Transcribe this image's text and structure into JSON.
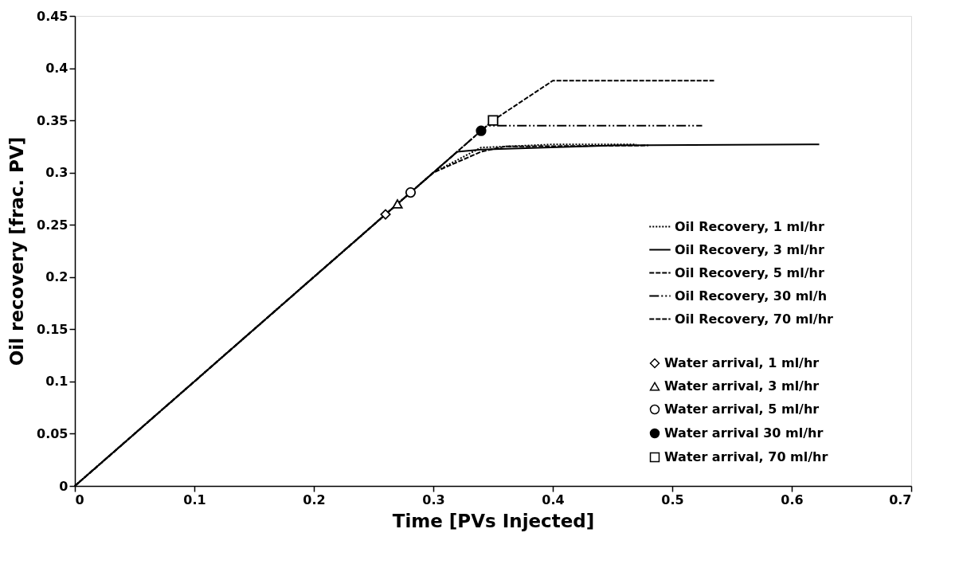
{
  "chart_data": {
    "type": "line",
    "xlabel": "Time [PVs Injected]",
    "ylabel": "Oil recovery [frac. PV]",
    "xlim": [
      0,
      0.7
    ],
    "xticks": [
      0,
      0.1,
      0.2,
      0.3,
      0.4,
      0.5,
      0.6,
      0.7
    ],
    "ylim": [
      0,
      0.45
    ],
    "yticks": [
      0,
      0.05,
      0.1,
      0.15,
      0.2,
      0.25,
      0.3,
      0.35,
      0.4,
      0.45
    ],
    "grid": false,
    "legend": "right",
    "series": [
      {
        "name": "Oil Recovery, 1 ml/hr",
        "line_style": "dotted",
        "color": "#000000",
        "x": [
          0,
          0.3,
          0.34,
          0.4,
          0.47
        ],
        "values": [
          0,
          0.3,
          0.324,
          0.327,
          0.327
        ]
      },
      {
        "name": "Oil Recovery, 3 ml/hr",
        "line_style": "solid",
        "color": "#000000",
        "x": [
          0,
          0.32,
          0.34,
          0.45,
          0.623
        ],
        "values": [
          0,
          0.32,
          0.322,
          0.326,
          0.327
        ]
      },
      {
        "name": "Oil Recovery, 5 ml/hr",
        "line_style": "dashed",
        "color": "#000000",
        "x": [
          0,
          0.3,
          0.34,
          0.36,
          0.48
        ],
        "values": [
          0,
          0.3,
          0.32,
          0.325,
          0.326
        ]
      },
      {
        "name": "Oil Recovery, 30 ml/h",
        "line_style": "dashdot",
        "color": "#000000",
        "x": [
          0,
          0.34,
          0.345,
          0.525
        ],
        "values": [
          0,
          0.34,
          0.345,
          0.345
        ]
      },
      {
        "name": "Oil Recovery, 70 ml/hr",
        "line_style": "dashed",
        "color": "#000000",
        "x": [
          0,
          0.35,
          0.4,
          0.535
        ],
        "values": [
          0,
          0.35,
          0.388,
          0.388
        ]
      },
      {
        "name": "Water arrival, 1 ml/hr",
        "type": "scatter",
        "marker": "diamond",
        "color": "#000000",
        "x": [
          0.26
        ],
        "values": [
          0.26
        ]
      },
      {
        "name": "Water arrival, 3 ml/hr",
        "type": "scatter",
        "marker": "triangle",
        "color": "#000000",
        "x": [
          0.27
        ],
        "values": [
          0.27
        ]
      },
      {
        "name": "Water arrival, 5 ml/hr",
        "type": "scatter",
        "marker": "circle",
        "color": "#000000",
        "x": [
          0.281
        ],
        "values": [
          0.281
        ]
      },
      {
        "name": "Water arrival 30 ml/hr",
        "type": "scatter",
        "marker": "filled_circle",
        "color": "#000000",
        "x": [
          0.34
        ],
        "values": [
          0.34
        ]
      },
      {
        "name": "Water arrival, 70 ml/hr",
        "type": "scatter",
        "marker": "square",
        "color": "#000000",
        "x": [
          0.35
        ],
        "values": [
          0.35
        ]
      }
    ]
  }
}
